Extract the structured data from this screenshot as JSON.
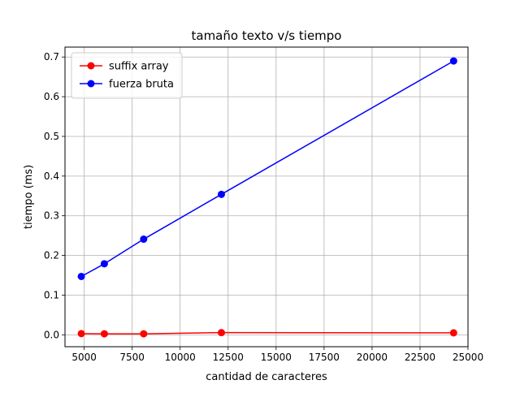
{
  "chart_data": {
    "type": "line",
    "title": "tamaño texto v/s tiempo",
    "xlabel": "cantidad de caracteres",
    "ylabel": "tiempo (ms)",
    "xlim": [
      4000,
      25000
    ],
    "ylim": [
      -0.03,
      0.725
    ],
    "xticks": [
      5000,
      7500,
      10000,
      12500,
      15000,
      17500,
      20000,
      22500,
      25000
    ],
    "xtick_labels": [
      "5000",
      "7500",
      "10000",
      "12500",
      "15000",
      "17500",
      "20000",
      "22500",
      "25000"
    ],
    "yticks": [
      0.0,
      0.1,
      0.2,
      0.3,
      0.4,
      0.5,
      0.6,
      0.7
    ],
    "ytick_labels": [
      "0.0",
      "0.1",
      "0.2",
      "0.3",
      "0.4",
      "0.5",
      "0.6",
      "0.7"
    ],
    "grid": true,
    "legend_position": "upper-left",
    "series": [
      {
        "name": "suffix array",
        "color": "#ff0000",
        "marker": "circle",
        "x": [
          4850,
          6050,
          8100,
          12150,
          24250
        ],
        "y": [
          0.003,
          0.0025,
          0.0025,
          0.0055,
          0.005
        ]
      },
      {
        "name": "fuerza bruta",
        "color": "#0000ff",
        "marker": "circle",
        "x": [
          4850,
          6050,
          8100,
          12150,
          24250
        ],
        "y": [
          0.147,
          0.179,
          0.241,
          0.354,
          0.69
        ]
      }
    ]
  }
}
